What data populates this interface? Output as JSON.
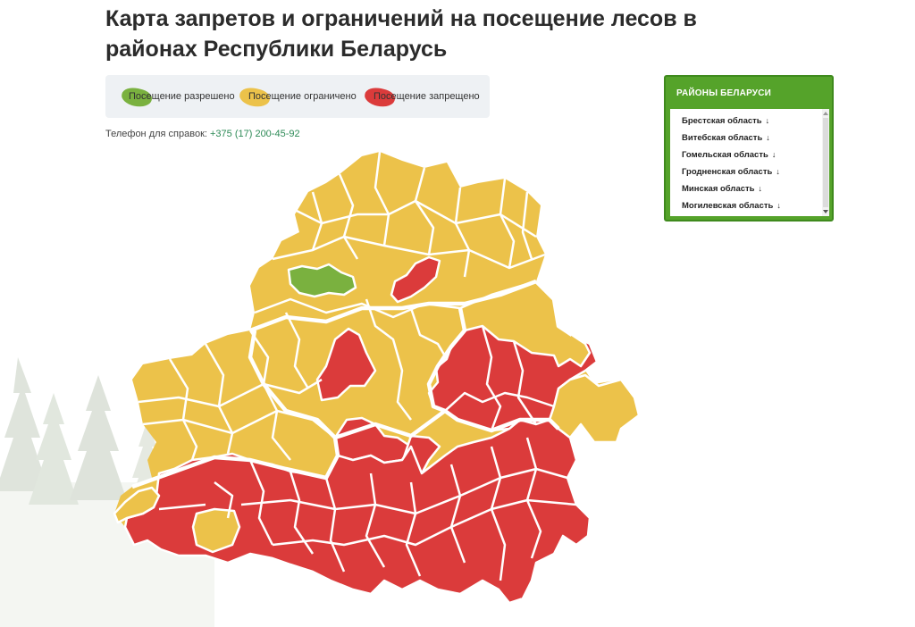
{
  "page": {
    "title": "Карта запретов и ограничений на посещение лесов в районах Республики Беларусь"
  },
  "legend": {
    "items": [
      {
        "label": "Посещение разрешено",
        "color": "#7ab13f"
      },
      {
        "label": "Посещение ограничено",
        "color": "#ecc24a"
      },
      {
        "label": "Посещение запрещено",
        "color": "#db3b3b"
      }
    ]
  },
  "phone": {
    "label": "Телефон для справок:",
    "number": "+375 (17) 200-45-92"
  },
  "regions_panel": {
    "title": "РАЙОНЫ БЕЛАРУСИ",
    "items": [
      {
        "label": "Брестская область",
        "arrow": "↓"
      },
      {
        "label": "Витебская область",
        "arrow": "↓"
      },
      {
        "label": "Гомельская область",
        "arrow": "↓"
      },
      {
        "label": "Гродненская область",
        "arrow": "↓"
      },
      {
        "label": "Минская область",
        "arrow": "↓"
      },
      {
        "label": "Могилевская область",
        "arrow": "↓"
      }
    ]
  },
  "map": {
    "status_colors": {
      "allowed": "#7ab13f",
      "restricted": "#ecc24a",
      "prohibited": "#db3b3b"
    }
  }
}
